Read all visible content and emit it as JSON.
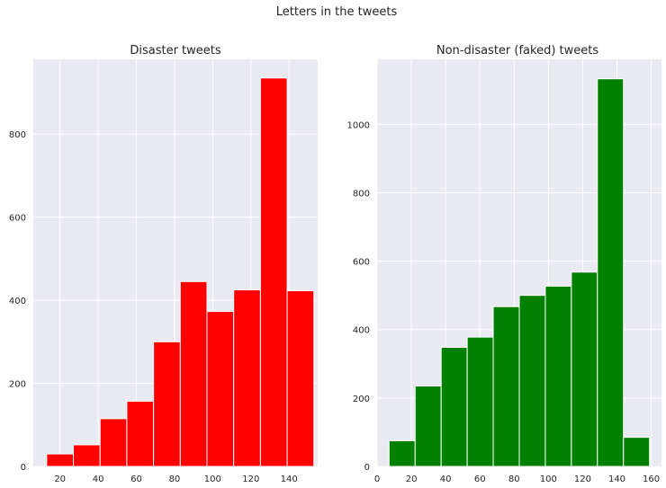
{
  "figure": {
    "title": "Letters in the tweets"
  },
  "chart_data": [
    {
      "type": "bar",
      "subtype": "histogram",
      "title": "Disaster tweets",
      "xlabel": "",
      "ylabel": "",
      "color": "#ff0000",
      "grid": true,
      "bin_edges": [
        13,
        27,
        41,
        55,
        69,
        83,
        97,
        111,
        125,
        139,
        153
      ],
      "values": [
        30,
        52,
        115,
        157,
        300,
        445,
        373,
        425,
        935,
        423
      ],
      "xlim": [
        6,
        155
      ],
      "ylim": [
        0,
        980
      ],
      "xticks": [
        20,
        40,
        60,
        80,
        100,
        120,
        140
      ],
      "yticks": [
        0,
        200,
        400,
        600,
        800
      ]
    },
    {
      "type": "bar",
      "subtype": "histogram",
      "title": "Non-disaster (faked) tweets",
      "xlabel": "",
      "ylabel": "",
      "color": "#008000",
      "grid": true,
      "bin_edges": [
        7,
        22.2,
        37.4,
        52.6,
        67.8,
        83,
        98.2,
        113.4,
        128.6,
        143.8,
        159
      ],
      "values": [
        75,
        235,
        348,
        378,
        467,
        500,
        527,
        568,
        1133,
        85
      ],
      "xlim": [
        0,
        166
      ],
      "ylim": [
        0,
        1190
      ],
      "xticks": [
        0,
        20,
        40,
        60,
        80,
        100,
        120,
        140,
        160
      ],
      "yticks": [
        0,
        200,
        400,
        600,
        800,
        1000
      ]
    }
  ]
}
